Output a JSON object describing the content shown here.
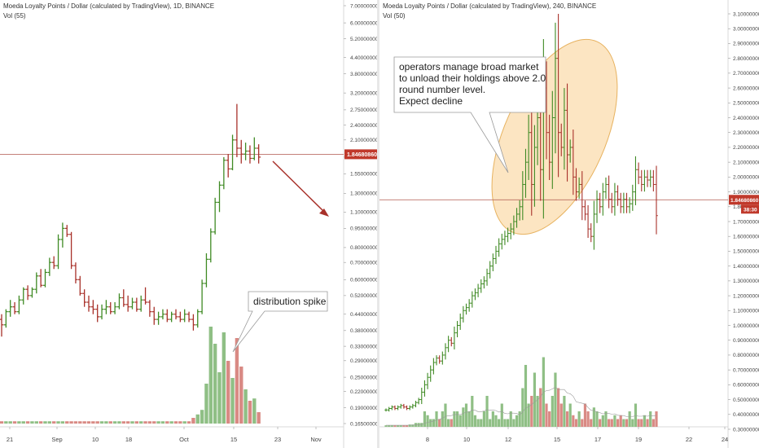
{
  "colors": {
    "up": "#3f8a24",
    "down": "#a8312a",
    "vol_up": "#8fbf85",
    "vol_down": "#d98a84",
    "price_line": "#b0574e",
    "price_tag": "#c0392b",
    "ellipse_fill": "#fbdcae",
    "ellipse_stroke": "#e7b25f"
  },
  "chart_data": [
    {
      "type": "ohlc",
      "title": "Moeda Loyalty Points / Dollar (calculated by TradingView), 1D, BINANCE",
      "volume_label": "Vol (55)",
      "y_ticks": [
        "7.00000000",
        "6.00000000",
        "5.20000000",
        "4.40000000",
        "3.80000000",
        "3.20000000",
        "2.75000000",
        "2.40000000",
        "2.10000000",
        "1.80000000",
        "1.55000000",
        "1.30000000",
        "1.10000000",
        "0.95000000",
        "0.80000000",
        "0.70000000",
        "0.60000000",
        "0.52000000",
        "0.44000000",
        "0.38000000",
        "0.33000000",
        "0.29000000",
        "0.25000000",
        "0.22000000",
        "0.19000000",
        "0.16500000"
      ],
      "x_ticks": [
        "21",
        "Sep",
        "10",
        "18",
        "Oct",
        "15",
        "23",
        "Nov"
      ],
      "current_price": "1.84680860",
      "annotation": "distribution spike",
      "bars": [
        [
          0.42,
          0.44,
          0.36,
          0.4
        ],
        [
          0.4,
          0.46,
          0.39,
          0.45
        ],
        [
          0.45,
          0.5,
          0.43,
          0.47
        ],
        [
          0.47,
          0.49,
          0.44,
          0.45
        ],
        [
          0.45,
          0.52,
          0.44,
          0.5
        ],
        [
          0.5,
          0.56,
          0.48,
          0.55
        ],
        [
          0.55,
          0.57,
          0.5,
          0.52
        ],
        [
          0.52,
          0.56,
          0.51,
          0.55
        ],
        [
          0.55,
          0.64,
          0.53,
          0.62
        ],
        [
          0.62,
          0.66,
          0.56,
          0.57
        ],
        [
          0.57,
          0.66,
          0.56,
          0.64
        ],
        [
          0.64,
          0.73,
          0.62,
          0.7
        ],
        [
          0.7,
          0.74,
          0.66,
          0.68
        ],
        [
          0.68,
          0.9,
          0.66,
          0.86
        ],
        [
          0.86,
          1.0,
          0.8,
          0.95
        ],
        [
          0.95,
          0.98,
          0.88,
          0.9
        ],
        [
          0.9,
          0.92,
          0.66,
          0.68
        ],
        [
          0.68,
          0.7,
          0.58,
          0.6
        ],
        [
          0.6,
          0.62,
          0.52,
          0.53
        ],
        [
          0.53,
          0.55,
          0.47,
          0.49
        ],
        [
          0.49,
          0.52,
          0.45,
          0.47
        ],
        [
          0.47,
          0.5,
          0.44,
          0.46
        ],
        [
          0.46,
          0.48,
          0.41,
          0.43
        ],
        [
          0.43,
          0.48,
          0.42,
          0.46
        ],
        [
          0.46,
          0.5,
          0.44,
          0.47
        ],
        [
          0.47,
          0.49,
          0.44,
          0.45
        ],
        [
          0.45,
          0.49,
          0.44,
          0.47
        ],
        [
          0.47,
          0.53,
          0.46,
          0.51
        ],
        [
          0.51,
          0.55,
          0.47,
          0.48
        ],
        [
          0.48,
          0.52,
          0.45,
          0.47
        ],
        [
          0.47,
          0.51,
          0.46,
          0.49
        ],
        [
          0.49,
          0.51,
          0.45,
          0.46
        ],
        [
          0.46,
          0.52,
          0.45,
          0.5
        ],
        [
          0.5,
          0.56,
          0.48,
          0.49
        ],
        [
          0.49,
          0.5,
          0.43,
          0.45
        ],
        [
          0.45,
          0.47,
          0.4,
          0.42
        ],
        [
          0.42,
          0.45,
          0.4,
          0.43
        ],
        [
          0.43,
          0.46,
          0.42,
          0.44
        ],
        [
          0.44,
          0.46,
          0.41,
          0.42
        ],
        [
          0.42,
          0.45,
          0.41,
          0.44
        ],
        [
          0.44,
          0.46,
          0.42,
          0.43
        ],
        [
          0.43,
          0.45,
          0.41,
          0.42
        ],
        [
          0.42,
          0.46,
          0.41,
          0.44
        ],
        [
          0.44,
          0.45,
          0.41,
          0.42
        ],
        [
          0.42,
          0.44,
          0.38,
          0.4
        ],
        [
          0.4,
          0.46,
          0.39,
          0.45
        ],
        [
          0.45,
          0.6,
          0.44,
          0.58
        ],
        [
          0.58,
          0.76,
          0.56,
          0.72
        ],
        [
          0.72,
          0.95,
          0.7,
          0.92
        ],
        [
          0.92,
          1.25,
          0.9,
          1.2
        ],
        [
          1.2,
          1.45,
          1.1,
          1.4
        ],
        [
          1.4,
          1.8,
          1.35,
          1.75
        ],
        [
          1.75,
          1.85,
          1.5,
          1.62
        ],
        [
          1.62,
          2.2,
          1.6,
          2.1
        ],
        [
          2.1,
          2.9,
          1.8,
          1.95
        ],
        [
          1.95,
          2.1,
          1.7,
          1.85
        ],
        [
          1.85,
          2.05,
          1.75,
          1.9
        ],
        [
          1.9,
          2.0,
          1.7,
          1.78
        ],
        [
          1.78,
          2.15,
          1.75,
          1.95
        ],
        [
          1.95,
          2.02,
          1.7,
          1.8
        ]
      ],
      "volume": [
        0.02,
        0.02,
        0.02,
        0.02,
        0.02,
        0.02,
        0.02,
        0.02,
        0.02,
        0.02,
        0.02,
        0.02,
        0.02,
        0.02,
        0.02,
        0.02,
        0.02,
        0.02,
        0.02,
        0.02,
        0.02,
        0.02,
        0.02,
        0.02,
        0.02,
        0.02,
        0.02,
        0.02,
        0.02,
        0.02,
        0.02,
        0.02,
        0.02,
        0.02,
        0.02,
        0.02,
        0.02,
        0.02,
        0.02,
        0.02,
        0.02,
        0.02,
        0.02,
        0.02,
        0.05,
        0.08,
        0.12,
        0.35,
        0.85,
        0.7,
        0.45,
        0.8,
        0.55,
        0.4,
        0.75,
        0.5,
        0.3,
        0.2,
        0.22,
        0.1
      ]
    },
    {
      "type": "ohlc",
      "title": "Moeda Loyalty Points / Dollar (calculated by TradingView), 240, BINANCE",
      "volume_label": "Vol (50)",
      "y_ticks": [
        "3.10000000",
        "3.00000000",
        "2.90000000",
        "2.80000000",
        "2.70000000",
        "2.60000000",
        "2.50000000",
        "2.40000000",
        "2.30000000",
        "2.20000000",
        "2.10000000",
        "2.00000000",
        "1.90000000",
        "1.80000000",
        "1.70000000",
        "1.60000000",
        "1.50000000",
        "1.40000000",
        "1.30000000",
        "1.20000000",
        "1.10000000",
        "1.00000000",
        "0.90000000",
        "0.80000000",
        "0.70000000",
        "0.60000000",
        "0.50000000",
        "0.40000000",
        "0.30000000"
      ],
      "x_ticks": [
        "8",
        "10",
        "12",
        "15",
        "17",
        "19",
        "22",
        "24"
      ],
      "current_price": "1.84680860",
      "countdown": "38:30",
      "annotation_lines": [
        "operators manage broad market",
        "to unload their holdings above 2.0",
        "round number level.",
        "Expect decline"
      ],
      "closes": [
        0.43,
        0.44,
        0.45,
        0.44,
        0.45,
        0.46,
        0.45,
        0.44,
        0.45,
        0.46,
        0.48,
        0.5,
        0.55,
        0.6,
        0.65,
        0.7,
        0.75,
        0.78,
        0.76,
        0.8,
        0.85,
        0.9,
        0.88,
        0.95,
        1.0,
        1.05,
        1.1,
        1.12,
        1.15,
        1.2,
        1.22,
        1.25,
        1.28,
        1.3,
        1.35,
        1.4,
        1.45,
        1.5,
        1.55,
        1.58,
        1.6,
        1.62,
        1.65,
        1.7,
        1.75,
        1.8,
        1.95,
        2.1,
        2.3,
        1.95,
        2.2,
        2.4,
        2.05,
        2.6,
        2.3,
        2.1,
        2.4,
        2.8,
        2.3,
        2.2,
        2.45,
        2.15,
        2.2,
        2.0,
        1.9,
        1.95,
        1.8,
        1.75,
        1.65,
        1.6,
        1.75,
        1.85,
        1.8,
        1.9,
        1.95,
        1.85,
        1.8,
        1.9,
        1.85,
        1.8,
        1.85,
        1.8,
        1.82,
        1.9,
        2.05,
        2.0,
        1.95,
        2.0,
        1.98,
        2.0,
        1.95,
        1.74
      ],
      "volume": [
        0.02,
        0.02,
        0.02,
        0.02,
        0.02,
        0.02,
        0.02,
        0.02,
        0.03,
        0.03,
        0.05,
        0.05,
        0.05,
        0.2,
        0.15,
        0.1,
        0.1,
        0.2,
        0.1,
        0.2,
        0.3,
        0.1,
        0.1,
        0.2,
        0.2,
        0.15,
        0.25,
        0.3,
        0.2,
        0.4,
        0.15,
        0.1,
        0.1,
        0.2,
        0.4,
        0.1,
        0.2,
        0.15,
        0.1,
        0.3,
        0.1,
        0.1,
        0.2,
        0.1,
        0.15,
        0.2,
        0.5,
        0.8,
        0.3,
        0.4,
        0.7,
        0.4,
        0.5,
        0.9,
        0.3,
        0.2,
        0.4,
        0.7,
        0.5,
        0.3,
        0.4,
        0.2,
        0.3,
        0.15,
        0.1,
        0.2,
        0.1,
        0.3,
        0.2,
        0.1,
        0.25,
        0.2,
        0.1,
        0.15,
        0.2,
        0.1,
        0.1,
        0.15,
        0.1,
        0.15,
        0.1,
        0.1,
        0.2,
        0.1,
        0.3,
        0.1,
        0.1,
        0.15,
        0.1,
        0.2,
        0.1,
        0.2
      ]
    }
  ]
}
